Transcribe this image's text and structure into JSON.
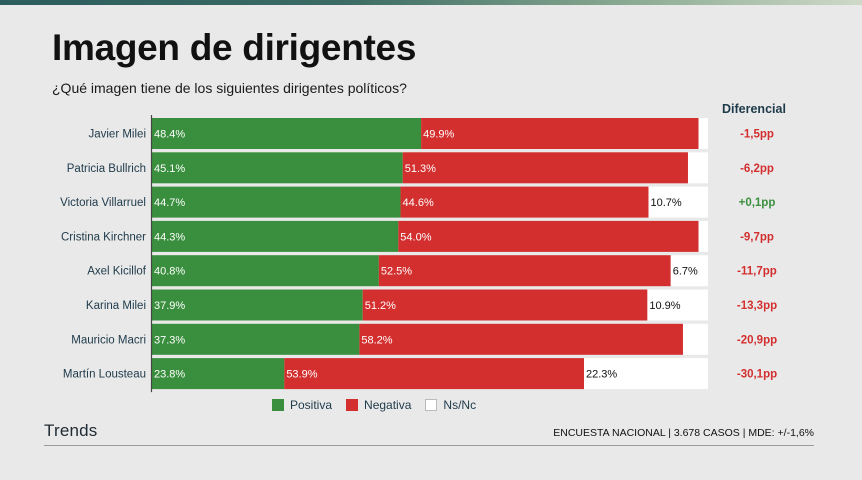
{
  "header": {
    "title": "Imagen de dirigentes",
    "subtitle": "¿Qué imagen tiene de los siguientes dirigentes políticos?",
    "diff_label": "Diferencial"
  },
  "colors": {
    "positiva": "#3a8f3e",
    "negativa": "#d32f2f",
    "nsnc": "#ffffff",
    "diff_positive": "#3a8f3e",
    "diff_negative": "#d32f2f"
  },
  "chart_data": {
    "type": "bar",
    "orientation": "horizontal",
    "stacked": true,
    "categories": [
      "Javier Milei",
      "Patricia Bullrich",
      "Victoria Villarruel",
      "Cristina Kirchner",
      "Axel Kicillof",
      "Karina Milei",
      "Mauricio Macri",
      "Martín Lousteau"
    ],
    "series": [
      {
        "name": "Positiva",
        "values": [
          48.4,
          45.1,
          44.7,
          44.3,
          40.8,
          37.9,
          37.3,
          23.8
        ],
        "labels": [
          "48.4%",
          "45.1%",
          "44.7%",
          "44.3%",
          "40.8%",
          "37.9%",
          "37.3%",
          "23.8%"
        ]
      },
      {
        "name": "Negativa",
        "values": [
          49.9,
          51.3,
          44.6,
          54.0,
          52.5,
          51.2,
          58.2,
          53.9
        ],
        "labels": [
          "49.9%",
          "51.3%",
          "44.6%",
          "54.0%",
          "52.5%",
          "51.2%",
          "58.2%",
          "53.9%"
        ]
      },
      {
        "name": "Ns/Nc",
        "values": [
          1.7,
          3.6,
          10.7,
          1.7,
          6.7,
          10.9,
          4.5,
          22.3
        ],
        "labels": [
          "",
          "",
          "10.7%",
          "",
          "6.7%",
          "10.9%",
          "",
          "22.3%"
        ]
      }
    ],
    "diferencial": [
      "-1,5pp",
      "-6,2pp",
      "+0,1pp",
      "-9,7pp",
      "-11,7pp",
      "-13,3pp",
      "-20,9pp",
      "-30,1pp"
    ],
    "xlim": [
      0,
      100
    ],
    "legend": "bottom"
  },
  "legend": {
    "positiva": "Positiva",
    "negativa": "Negativa",
    "nsnc": "Ns/Nc"
  },
  "footer": {
    "brand": "Trends",
    "note": "ENCUESTA NACIONAL | 3.678 CASOS | MDE: +/-1,6%"
  }
}
